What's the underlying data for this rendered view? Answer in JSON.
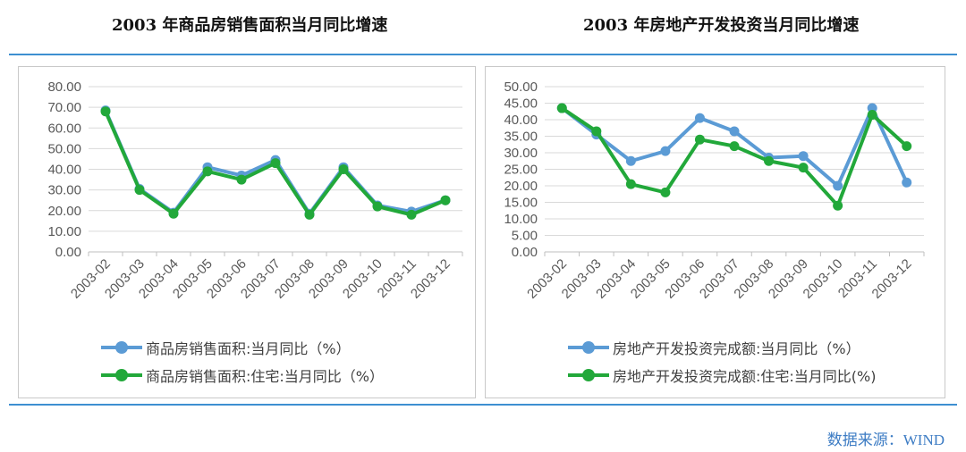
{
  "titles": {
    "left": "2003 年商品房销售面积当月同比增速",
    "right": "2003 年房地产开发投资当月同比增速"
  },
  "source": "数据来源：WIND",
  "chart_data": [
    {
      "type": "line",
      "categories": [
        "2003-02",
        "2003-03",
        "2003-04",
        "2003-05",
        "2003-06",
        "2003-07",
        "2003-08",
        "2003-09",
        "2003-10",
        "2003-11",
        "2003-12"
      ],
      "ylim": [
        0,
        80
      ],
      "yticks": [
        "80.00",
        "70.00",
        "60.00",
        "50.00",
        "40.00",
        "30.00",
        "20.00",
        "10.00",
        "0.00"
      ],
      "grid": true,
      "legend_position": "bottom",
      "series": [
        {
          "name": "商品房销售面积:当月同比（%）",
          "color": "#5b9bd5",
          "values": [
            68.5,
            30.5,
            19.0,
            41.0,
            37.0,
            44.5,
            18.5,
            41.0,
            22.5,
            19.5,
            25.0
          ]
        },
        {
          "name": "商品房销售面积:住宅:当月同比（%）",
          "color": "#22a83a",
          "values": [
            68.0,
            30.0,
            18.5,
            39.0,
            35.0,
            43.0,
            18.0,
            40.0,
            22.0,
            18.0,
            25.0
          ]
        }
      ]
    },
    {
      "type": "line",
      "categories": [
        "2003-02",
        "2003-03",
        "2003-04",
        "2003-05",
        "2003-06",
        "2003-07",
        "2003-08",
        "2003-09",
        "2003-10",
        "2003-11",
        "2003-12"
      ],
      "ylim": [
        0,
        50
      ],
      "yticks": [
        "50.00",
        "45.00",
        "40.00",
        "35.00",
        "30.00",
        "25.00",
        "20.00",
        "15.00",
        "10.00",
        "5.00",
        "0.00"
      ],
      "grid": true,
      "legend_position": "bottom",
      "series": [
        {
          "name": "房地产开发投资完成额:当月同比（%）",
          "color": "#5b9bd5",
          "values": [
            43.5,
            35.5,
            27.5,
            30.5,
            40.5,
            36.5,
            28.5,
            29.0,
            20.0,
            43.5,
            21.0
          ]
        },
        {
          "name": "房地产开发投资完成额:住宅:当月同比(%)",
          "color": "#22a83a",
          "values": [
            43.5,
            36.5,
            20.5,
            18.0,
            34.0,
            32.0,
            27.5,
            25.5,
            14.0,
            41.5,
            32.0
          ]
        }
      ]
    }
  ]
}
